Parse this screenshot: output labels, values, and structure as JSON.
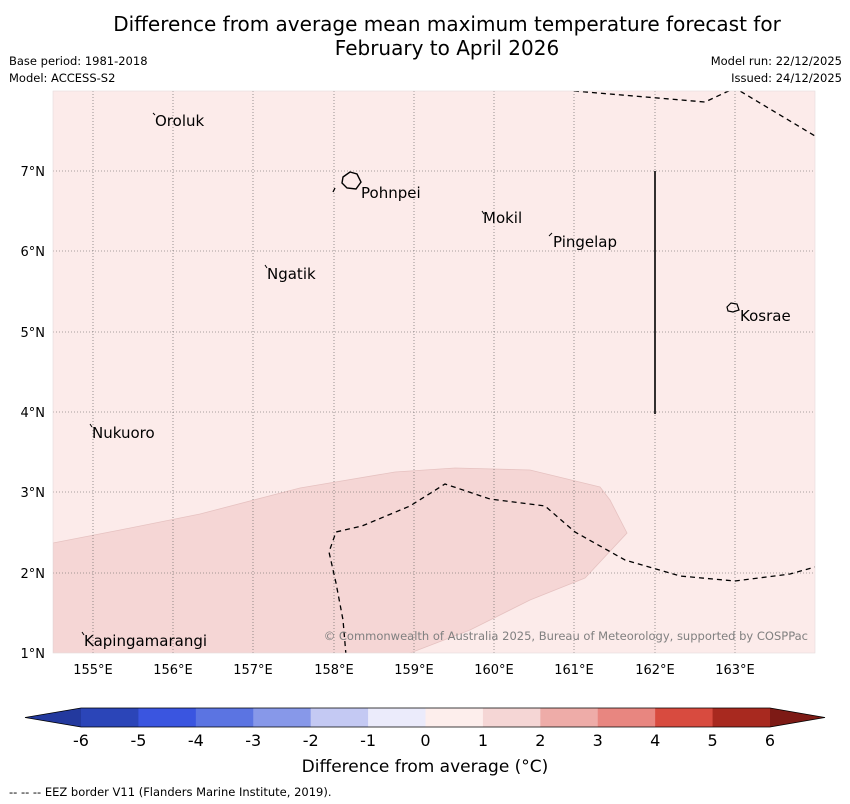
{
  "title": {
    "line1": "Difference from average mean maximum temperature forecast for",
    "line2": "February to April 2026"
  },
  "meta": {
    "base_period": "Base period: 1981-2018",
    "model": "Model: ACCESS-S2",
    "model_run": "Model run: 22/12/2025",
    "issued": "Issued: 24/12/2025"
  },
  "map": {
    "lon_labels": [
      "155°E",
      "156°E",
      "157°E",
      "158°E",
      "159°E",
      "160°E",
      "161°E",
      "162°E",
      "163°E"
    ],
    "lat_labels": [
      "7°N",
      "6°N",
      "5°N",
      "4°N",
      "3°N",
      "2°N",
      "1°N"
    ],
    "islands": [
      {
        "name": "Oroluk"
      },
      {
        "name": "Pohnpei"
      },
      {
        "name": "Mokil"
      },
      {
        "name": "Pingelap"
      },
      {
        "name": "Ngatik"
      },
      {
        "name": "Kosrae"
      },
      {
        "name": "Nukuoro"
      },
      {
        "name": "Kapingamarangi"
      }
    ],
    "copyright": "© Commonwealth of Australia 2025, Bureau of Meteorology, supported by COSPPac",
    "colors": {
      "anomaly_0_to_1": "#fcebea",
      "anomaly_1_to_2": "#f5d6d5"
    }
  },
  "colorbar": {
    "ticks": [
      "-6",
      "-5",
      "-4",
      "-3",
      "-2",
      "-1",
      "0",
      "1",
      "2",
      "3",
      "4",
      "5",
      "6"
    ],
    "colors": [
      "#23399e",
      "#2b45b8",
      "#3a55e0",
      "#5b74e2",
      "#8798e9",
      "#c4c9f3",
      "#ebebfb",
      "#fdeeec",
      "#f5d6d5",
      "#eeaca8",
      "#e88680",
      "#d84b3f",
      "#a8291f",
      "#7d1a15"
    ],
    "label": "Difference from average (°C)"
  },
  "footnote": "--  --  -- EEZ border V11 (Flanders Marine Institute, 2019)."
}
